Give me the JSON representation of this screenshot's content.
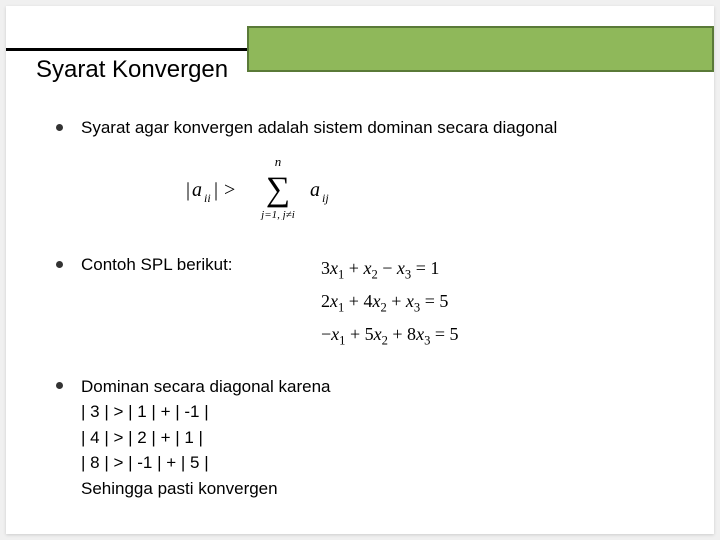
{
  "slide": {
    "title": "Syarat Konvergen",
    "colors": {
      "header_box_bg": "#8fb85a",
      "header_box_border": "#5a7a38",
      "header_line": "#000000",
      "slide_bg": "#ffffff",
      "page_bg": "#f0f0f0",
      "text": "#000000",
      "bullet": "#333333"
    },
    "typography": {
      "title_fontsize": 24,
      "body_fontsize": 17,
      "equation_fontsize": 18,
      "font_family_body": "Arial",
      "font_family_math": "Times New Roman"
    },
    "bullets": [
      {
        "text": "Syarat agar konvergen adalah sistem dominan secara diagonal",
        "formula": {
          "lhs": "|a_{ii}|",
          "op": ">",
          "rhs_sum_lower": "j=1, j≠i",
          "rhs_sum_upper": "n",
          "rhs_term": "a_{ij}"
        }
      },
      {
        "text": "Contoh SPL berikut:",
        "equations": [
          "3x1 + x2 − x3 = 1",
          "2x1 + 4x2 + x3 = 5",
          "−x1 + 5x2 + 8x3 = 5"
        ]
      },
      {
        "text": "Dominan secara diagonal karena",
        "inequalities": [
          "| 3 | > | 1 |  + | -1 |",
          "| 4 | > | 2 |  + | 1 |",
          "| 8 | > | -1 |  + | 5 |"
        ],
        "conclusion": "Sehingga pasti konvergen"
      }
    ]
  }
}
